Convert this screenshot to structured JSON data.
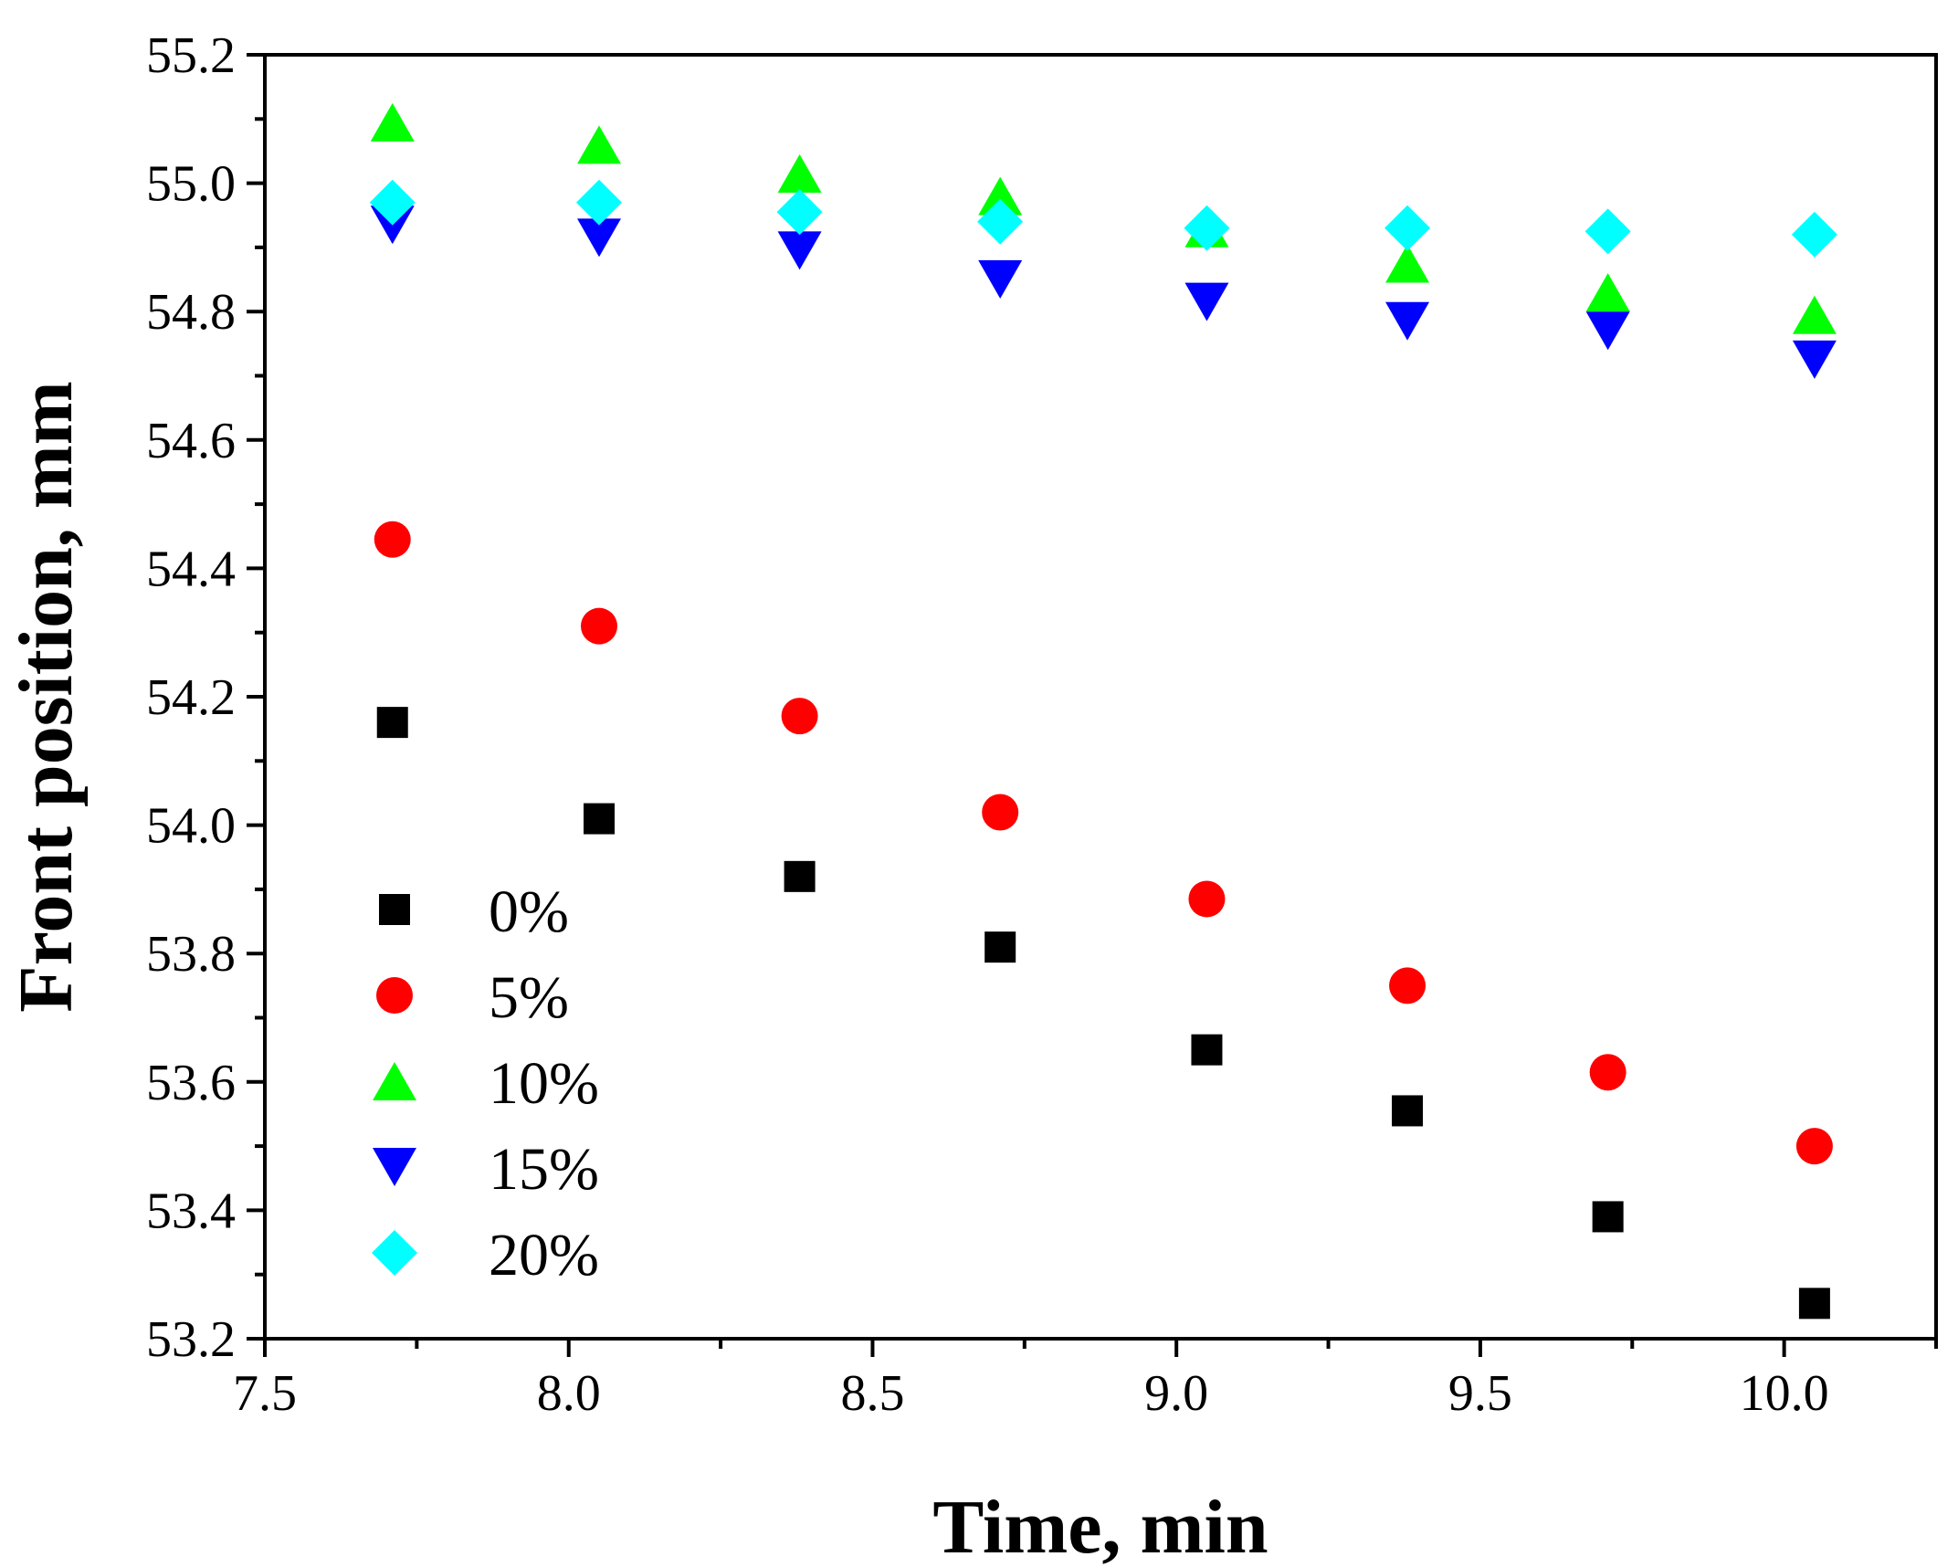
{
  "chart_data": {
    "type": "scatter",
    "title": "",
    "xlabel": "Time, min",
    "ylabel": "Front position, mm",
    "xlim": [
      7.5,
      10.25
    ],
    "ylim": [
      53.2,
      55.2
    ],
    "x_ticks": [
      "7.5",
      "8.0",
      "8.5",
      "9.0",
      "9.5",
      "10.0"
    ],
    "y_ticks": [
      "53.2",
      "53.4",
      "53.6",
      "53.8",
      "54.0",
      "54.2",
      "54.4",
      "54.6",
      "54.8",
      "55.0",
      "55.2"
    ],
    "grid": false,
    "legend_position": "bottom-left",
    "x": [
      7.71,
      8.05,
      8.38,
      8.71,
      9.05,
      9.38,
      9.71,
      10.05
    ],
    "series": [
      {
        "name": "0%",
        "marker": "square",
        "color": "#000000",
        "values": [
          54.16,
          54.01,
          53.92,
          53.81,
          53.65,
          53.555,
          53.39,
          53.255
        ]
      },
      {
        "name": "5%",
        "marker": "circle",
        "color": "#ff0000",
        "values": [
          54.445,
          54.31,
          54.17,
          54.02,
          53.885,
          53.75,
          53.615,
          53.5
        ]
      },
      {
        "name": "10%",
        "marker": "triangle-up",
        "color": "#00ff00",
        "values": [
          55.095,
          55.06,
          55.015,
          54.98,
          54.93,
          54.875,
          54.83,
          54.795
        ]
      },
      {
        "name": "15%",
        "marker": "triangle-down",
        "color": "#0000ff",
        "values": [
          54.935,
          54.915,
          54.895,
          54.85,
          54.815,
          54.785,
          54.77,
          54.725
        ]
      },
      {
        "name": "20%",
        "marker": "diamond",
        "color": "#00ffff",
        "values": [
          54.97,
          54.97,
          54.955,
          54.94,
          54.93,
          54.93,
          54.925,
          54.92
        ]
      }
    ]
  }
}
